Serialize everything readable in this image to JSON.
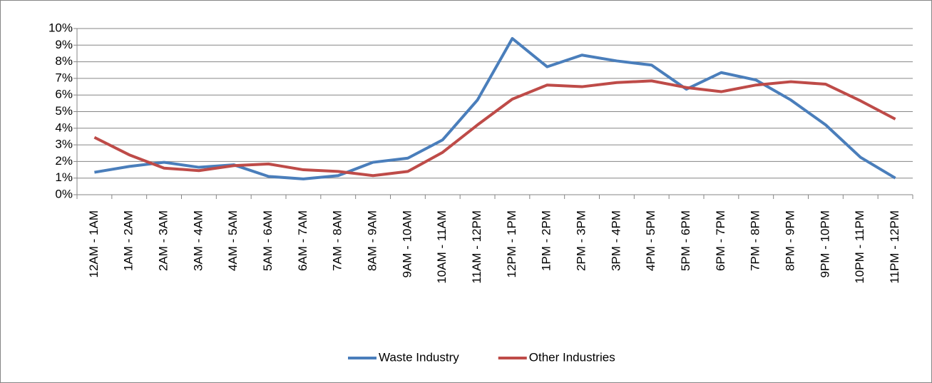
{
  "chart_data": {
    "type": "line",
    "categories": [
      "12AM - 1AM",
      "1AM - 2AM",
      "2AM - 3AM",
      "3AM - 4AM",
      "4AM - 5AM",
      "5AM - 6AM",
      "6AM - 7AM",
      "7AM - 8AM",
      "8AM - 9AM",
      "9AM - 10AM",
      "10AM - 11AM",
      "11AM - 12PM",
      "12PM - 1PM",
      "1PM - 2PM",
      "2PM - 3PM",
      "3PM - 4PM",
      "4PM - 5PM",
      "5PM - 6PM",
      "6PM - 7PM",
      "7PM - 8PM",
      "8PM - 9PM",
      "9PM - 10PM",
      "10PM - 11PM",
      "11PM - 12PM"
    ],
    "series": [
      {
        "name": "Waste Industry",
        "color": "#4a7ebb",
        "values": [
          1.35,
          1.7,
          1.95,
          1.65,
          1.8,
          1.1,
          0.95,
          1.15,
          1.95,
          2.2,
          3.3,
          5.7,
          9.4,
          7.7,
          8.4,
          8.05,
          7.8,
          6.35,
          7.35,
          6.9,
          5.7,
          4.2,
          2.25,
          1.0
        ]
      },
      {
        "name": "Other Industries",
        "color": "#be4b48",
        "values": [
          3.45,
          2.4,
          1.6,
          1.45,
          1.75,
          1.85,
          1.5,
          1.4,
          1.15,
          1.4,
          2.55,
          4.2,
          5.75,
          6.6,
          6.5,
          6.75,
          6.85,
          6.45,
          6.2,
          6.6,
          6.8,
          6.65,
          5.65,
          4.55
        ]
      }
    ],
    "ylim": [
      0,
      10
    ],
    "yticks": [
      {
        "value": 0,
        "label": "0%"
      },
      {
        "value": 1,
        "label": "1%"
      },
      {
        "value": 2,
        "label": "2%"
      },
      {
        "value": 3,
        "label": "3%"
      },
      {
        "value": 4,
        "label": "4%"
      },
      {
        "value": 5,
        "label": "5%"
      },
      {
        "value": 6,
        "label": "6%"
      },
      {
        "value": 7,
        "label": "7%"
      },
      {
        "value": 8,
        "label": "8%"
      },
      {
        "value": 9,
        "label": "9%"
      },
      {
        "value": 10,
        "label": "10%"
      }
    ],
    "grid": true,
    "legend": "bottom"
  }
}
